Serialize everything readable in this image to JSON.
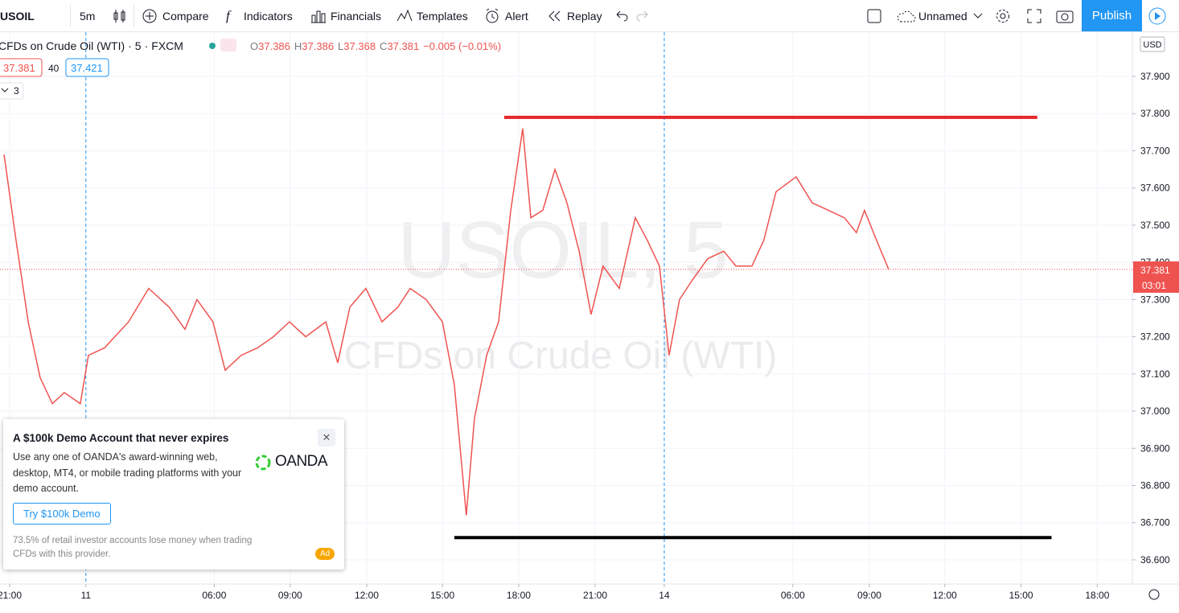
{
  "toolbar": {
    "symbol": "USOIL",
    "interval": "5m",
    "buttons": [
      "Compare",
      "Indicators",
      "Financials",
      "Templates",
      "Alert",
      "Replay"
    ],
    "layout_name": "Unnamed",
    "publish": "Publish"
  },
  "legend": {
    "title": "CFDs on Crude Oil (WTI)",
    "interval": "5",
    "exchange": "FXCM",
    "ohlc": [
      {
        "label": "O",
        "value": 37.386
      },
      {
        "label": "H",
        "value": 37.386
      },
      {
        "label": "L",
        "value": 37.368
      },
      {
        "label": "C",
        "value": 37.381
      }
    ],
    "change": "−0.005 (−0.01%)",
    "bid": 37.381,
    "spread": 40,
    "ask": 37.421,
    "indicators_count": 3
  },
  "watermark": {
    "symbol": "USOIL, 5",
    "description": "CFDs on Crude Oil (WTI)"
  },
  "currency": "USD",
  "ad": {
    "title": "A $100k Demo Account that never expires",
    "body": "Use any one of OANDA's award-winning web, desktop, MT4, or mobile trading platforms with your demo account.",
    "button": "Try $100k Demo",
    "brand": "OANDA",
    "disclaimer": "73.5% of retail investor accounts lose money when trading CFDs with this provider.",
    "badge": "Ad"
  },
  "chart_data": {
    "type": "line",
    "x": [
      -0.22,
      0.25,
      0.73,
      1.2,
      1.68,
      2.15,
      2.78,
      3.1,
      3.73,
      4.68,
      5.47,
      6.27,
      6.9,
      7.37,
      8.0,
      8.48,
      9.11,
      9.75,
      10.38,
      11.01,
      11.65,
      12.44,
      12.91,
      13.39,
      14.02,
      14.65,
      15.28,
      15.76,
      16.39,
      17.03,
      17.5,
      17.97,
      18.29,
      18.77,
      19.24,
      19.72,
      20.19,
      20.51,
      20.98,
      21.46,
      21.93,
      22.41,
      22.88,
      23.35,
      23.99,
      24.62,
      25.09,
      25.57,
      25.95,
      26.36,
      26.84,
      27.47,
      28.1,
      28.58,
      29.21,
      29.68,
      30.16,
      30.95,
      31.58,
      32.22,
      32.85,
      33.32,
      33.64,
      34.11,
      34.59
    ],
    "series": [
      {
        "color": "#ef5350",
        "values": [
          37.69,
          37.46,
          37.24,
          37.09,
          37.02,
          37.05,
          37.02,
          37.15,
          37.17,
          37.24,
          37.33,
          37.28,
          37.22,
          37.3,
          37.24,
          37.11,
          37.15,
          37.17,
          37.2,
          37.24,
          37.2,
          37.24,
          37.13,
          37.28,
          37.33,
          37.24,
          37.28,
          37.33,
          37.3,
          37.24,
          37.07,
          36.72,
          36.98,
          37.15,
          37.24,
          37.54,
          37.76,
          37.52,
          37.54,
          37.65,
          37.56,
          37.43,
          37.26,
          37.39,
          37.33,
          37.52,
          37.46,
          37.39,
          37.15,
          37.3,
          37.35,
          37.41,
          37.43,
          37.39,
          37.39,
          37.46,
          37.59,
          37.63,
          37.56,
          37.54,
          37.52,
          37.48,
          37.54,
          37.46,
          37.381
        ]
      }
    ],
    "hlines": [
      {
        "value": 37.79,
        "x": [
          19.46,
          40.44
        ],
        "color": "#e5262a"
      },
      {
        "value": 36.66,
        "x": [
          17.5,
          41.0
        ],
        "color": "#000000"
      }
    ],
    "last_price": {
      "value": 37.381,
      "countdown": "03:01",
      "color": "#ef5350"
    },
    "xlim": [
      -0.38,
      44.18
    ],
    "xticks": [
      {
        "value": 0,
        "label": "21:00"
      },
      {
        "value": 3,
        "label": "11"
      },
      {
        "value": 8.05,
        "label": "06:00"
      },
      {
        "value": 11.04,
        "label": "09:00"
      },
      {
        "value": 14.05,
        "label": "12:00"
      },
      {
        "value": 17.03,
        "label": "15:00"
      },
      {
        "value": 20.03,
        "label": "18:00"
      },
      {
        "value": 23.04,
        "label": "21:00"
      },
      {
        "value": 25.76,
        "label": "14"
      },
      {
        "value": 30.82,
        "label": "06:00"
      },
      {
        "value": 33.83,
        "label": "09:00"
      },
      {
        "value": 36.8,
        "label": "12:00"
      },
      {
        "value": 39.8,
        "label": "15:00"
      },
      {
        "value": 42.8,
        "label": "18:00"
      }
    ],
    "ylim": [
      36.535,
      38.019
    ],
    "yticks": [
      {
        "value": 36.6,
        "label": "36.600"
      },
      {
        "value": 36.7,
        "label": "36.700"
      },
      {
        "value": 36.8,
        "label": "36.800"
      },
      {
        "value": 36.9,
        "label": "36.900"
      },
      {
        "value": 37.0,
        "label": "37.000"
      },
      {
        "value": 37.1,
        "label": "37.100"
      },
      {
        "value": 37.2,
        "label": "37.200"
      },
      {
        "value": 37.3,
        "label": "37.300"
      },
      {
        "value": 37.4,
        "label": "37.400"
      },
      {
        "value": 37.5,
        "label": "37.500"
      },
      {
        "value": 37.6,
        "label": "37.600"
      },
      {
        "value": 37.7,
        "label": "37.700"
      },
      {
        "value": 37.8,
        "label": "37.800"
      },
      {
        "value": 37.9,
        "label": "37.900"
      }
    ],
    "grid": true
  }
}
